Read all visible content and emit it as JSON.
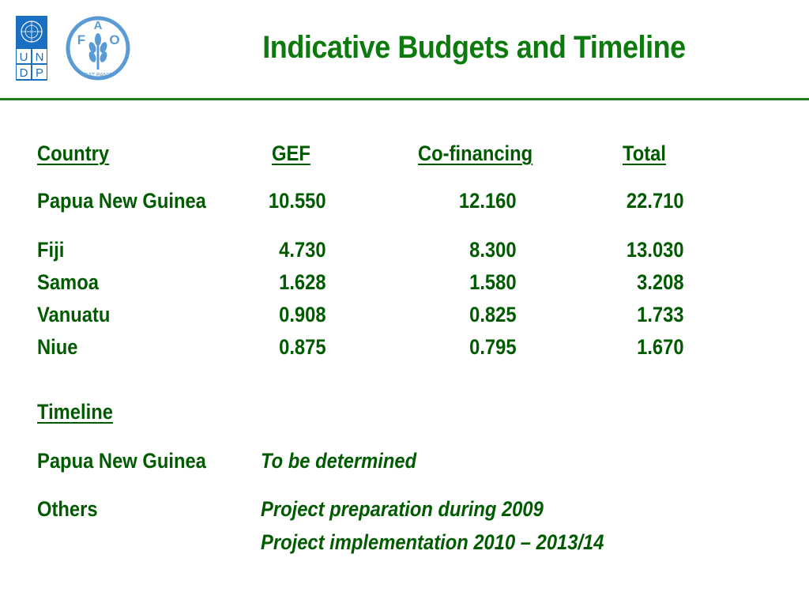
{
  "title": "Indicative Budgets and Timeline",
  "logos": {
    "undp_letters": [
      "U",
      "N",
      "D",
      "P"
    ],
    "fao_letters": [
      "F",
      "A",
      "O"
    ],
    "fao_motto": "FIAT PANIS"
  },
  "budget_table": {
    "headers": [
      "Country",
      "GEF",
      "Co-financing",
      "Total"
    ],
    "rows": [
      [
        "Papua New Guinea",
        "10.550",
        "12.160",
        "22.710"
      ],
      [
        "Fiji",
        "4.730",
        "8.300",
        "13.030"
      ],
      [
        "Samoa",
        "1.628",
        "1.580",
        "3.208"
      ],
      [
        "Vanuatu",
        "0.908",
        "0.825",
        "1.733"
      ],
      [
        "Niue",
        "0.875",
        "0.795",
        "1.670"
      ]
    ]
  },
  "timeline": {
    "heading": "Timeline",
    "items": [
      {
        "label": "Papua New Guinea",
        "lines": [
          "To be determined"
        ]
      },
      {
        "label": "Others",
        "lines": [
          "Project preparation during 2009",
          "Project implementation 2010 – 2013/14"
        ]
      }
    ]
  },
  "colors": {
    "title": "#0d7a0d",
    "text": "#005a00",
    "rule": "#1a7f1a",
    "undp_blue": "#1b6fc0",
    "fao_blue": "#5b9bd5"
  }
}
